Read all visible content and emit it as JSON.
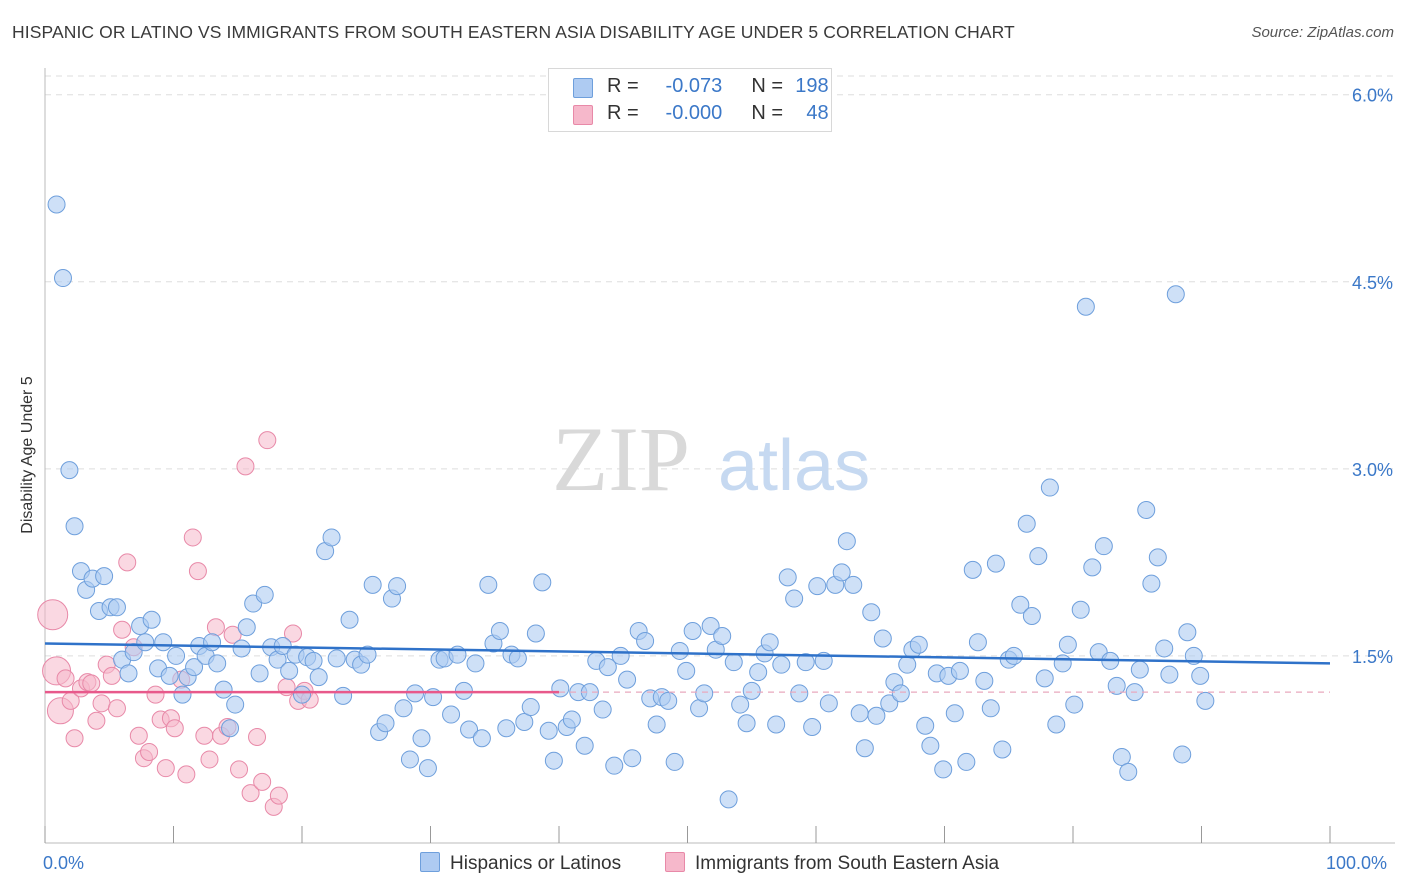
{
  "title": "HISPANIC OR LATINO VS IMMIGRANTS FROM SOUTH EASTERN ASIA DISABILITY AGE UNDER 5 CORRELATION CHART",
  "source": "Source: ZipAtlas.com",
  "watermark": {
    "zip": "ZIP",
    "atlas": "atlas"
  },
  "legend": {
    "r_label": "R =",
    "n_label": "N =",
    "rows": [
      {
        "r": "-0.073",
        "n": "198",
        "color": "#aecbf2"
      },
      {
        "r": "-0.000",
        "n": "48",
        "color": "#f6b8cb"
      }
    ]
  },
  "bottom_legend": [
    {
      "label": "Hispanics or Latinos",
      "color": "#aecbf2"
    },
    {
      "label": "Immigrants from South Eastern Asia",
      "color": "#f6b8cb"
    }
  ],
  "colors": {
    "blue_fill": "#aecbf2",
    "blue_stroke": "#6e9fdc",
    "blue_line": "#2f72c9",
    "pink_fill": "#f6b8cb",
    "pink_stroke": "#e889a8",
    "pink_line": "#e8598b",
    "axis_label": "#3b78c8",
    "grid": "#dddddd"
  },
  "chart_data": {
    "type": "scatter",
    "title": "HISPANIC OR LATINO VS IMMIGRANTS FROM SOUTH EASTERN ASIA DISABILITY AGE UNDER 5 CORRELATION CHART",
    "xlabel": "",
    "ylabel": "Disability Age Under 5",
    "xlim": [
      0,
      100
    ],
    "ylim": [
      0,
      6.15
    ],
    "x_tick_labels": [
      "0.0%",
      "100.0%"
    ],
    "y_ticks": [
      1.5,
      3.0,
      4.5,
      6.0
    ],
    "y_tick_labels": [
      "1.5%",
      "3.0%",
      "4.5%",
      "6.0%"
    ],
    "grid": "horizontal dashed",
    "legend_position": "top-center",
    "series": [
      {
        "name": "Hispanics or Latinos",
        "color": "#aecbf2",
        "trend": {
          "x": [
            0,
            100
          ],
          "y": [
            1.6,
            1.44
          ]
        },
        "points": [
          [
            0.9,
            5.12
          ],
          [
            1.4,
            4.53
          ],
          [
            1.9,
            2.99
          ],
          [
            2.3,
            2.54
          ],
          [
            2.8,
            2.18
          ],
          [
            3.2,
            2.03
          ],
          [
            3.7,
            2.12
          ],
          [
            4.2,
            1.86
          ],
          [
            4.6,
            2.14
          ],
          [
            5.1,
            1.89
          ],
          [
            5.6,
            1.89
          ],
          [
            6.0,
            1.47
          ],
          [
            6.5,
            1.36
          ],
          [
            6.9,
            1.53
          ],
          [
            7.4,
            1.74
          ],
          [
            7.8,
            1.61
          ],
          [
            8.3,
            1.79
          ],
          [
            8.8,
            1.4
          ],
          [
            9.2,
            1.61
          ],
          [
            9.7,
            1.34
          ],
          [
            10.2,
            1.5
          ],
          [
            10.7,
            1.19
          ],
          [
            11.1,
            1.33
          ],
          [
            11.6,
            1.41
          ],
          [
            12.0,
            1.58
          ],
          [
            12.5,
            1.5
          ],
          [
            13.0,
            1.61
          ],
          [
            13.4,
            1.44
          ],
          [
            13.9,
            1.23
          ],
          [
            14.4,
            0.92
          ],
          [
            14.8,
            1.11
          ],
          [
            15.3,
            1.56
          ],
          [
            15.7,
            1.73
          ],
          [
            16.2,
            1.92
          ],
          [
            16.7,
            1.36
          ],
          [
            17.1,
            1.99
          ],
          [
            17.6,
            1.57
          ],
          [
            18.1,
            1.47
          ],
          [
            18.5,
            1.58
          ],
          [
            19.0,
            1.38
          ],
          [
            19.5,
            1.51
          ],
          [
            20.0,
            1.19
          ],
          [
            20.4,
            1.49
          ],
          [
            20.9,
            1.46
          ],
          [
            21.3,
            1.33
          ],
          [
            21.8,
            2.34
          ],
          [
            22.3,
            2.45
          ],
          [
            22.7,
            1.48
          ],
          [
            23.2,
            1.18
          ],
          [
            23.7,
            1.79
          ],
          [
            24.1,
            1.47
          ],
          [
            24.6,
            1.43
          ],
          [
            25.1,
            1.51
          ],
          [
            25.5,
            2.07
          ],
          [
            26.0,
            0.89
          ],
          [
            26.5,
            0.96
          ],
          [
            27.0,
            1.96
          ],
          [
            27.4,
            2.06
          ],
          [
            27.9,
            1.08
          ],
          [
            28.4,
            0.67
          ],
          [
            28.8,
            1.2
          ],
          [
            29.3,
            0.84
          ],
          [
            29.8,
            0.6
          ],
          [
            30.2,
            1.17
          ],
          [
            30.7,
            1.47
          ],
          [
            31.1,
            1.48
          ],
          [
            31.6,
            1.03
          ],
          [
            32.1,
            1.51
          ],
          [
            32.6,
            1.22
          ],
          [
            33.0,
            0.91
          ],
          [
            33.5,
            1.44
          ],
          [
            34.0,
            0.84
          ],
          [
            34.5,
            2.07
          ],
          [
            34.9,
            1.6
          ],
          [
            35.4,
            1.7
          ],
          [
            35.9,
            0.92
          ],
          [
            36.3,
            1.51
          ],
          [
            36.8,
            1.48
          ],
          [
            37.3,
            0.97
          ],
          [
            37.8,
            1.09
          ],
          [
            38.2,
            1.68
          ],
          [
            38.7,
            2.09
          ],
          [
            39.2,
            0.9
          ],
          [
            39.6,
            0.66
          ],
          [
            40.1,
            1.24
          ],
          [
            40.6,
            0.93
          ],
          [
            41.0,
            0.99
          ],
          [
            41.5,
            1.21
          ],
          [
            42.0,
            0.78
          ],
          [
            42.4,
            1.21
          ],
          [
            42.9,
            1.46
          ],
          [
            43.4,
            1.07
          ],
          [
            43.8,
            1.41
          ],
          [
            44.3,
            0.62
          ],
          [
            44.8,
            1.5
          ],
          [
            45.3,
            1.31
          ],
          [
            45.7,
            0.68
          ],
          [
            46.2,
            1.7
          ],
          [
            46.7,
            1.62
          ],
          [
            47.1,
            1.16
          ],
          [
            47.6,
            0.95
          ],
          [
            48.0,
            1.17
          ],
          [
            48.5,
            1.14
          ],
          [
            49.0,
            0.65
          ],
          [
            49.4,
            1.54
          ],
          [
            49.9,
            1.38
          ],
          [
            50.4,
            1.7
          ],
          [
            50.9,
            1.08
          ],
          [
            51.3,
            1.2
          ],
          [
            51.8,
            1.74
          ],
          [
            52.2,
            1.55
          ],
          [
            52.7,
            1.66
          ],
          [
            53.2,
            0.35
          ],
          [
            53.6,
            1.45
          ],
          [
            54.1,
            1.11
          ],
          [
            54.6,
            0.96
          ],
          [
            55.0,
            1.22
          ],
          [
            55.5,
            1.37
          ],
          [
            56.0,
            1.52
          ],
          [
            56.4,
            1.61
          ],
          [
            56.9,
            0.95
          ],
          [
            57.3,
            1.43
          ],
          [
            57.8,
            2.13
          ],
          [
            58.3,
            1.96
          ],
          [
            58.7,
            1.2
          ],
          [
            59.2,
            1.45
          ],
          [
            59.7,
            0.93
          ],
          [
            60.1,
            2.06
          ],
          [
            60.6,
            1.46
          ],
          [
            61.0,
            1.12
          ],
          [
            61.5,
            2.07
          ],
          [
            62.0,
            2.17
          ],
          [
            62.4,
            2.42
          ],
          [
            62.9,
            2.07
          ],
          [
            63.4,
            1.04
          ],
          [
            63.8,
            0.76
          ],
          [
            64.3,
            1.85
          ],
          [
            64.7,
            1.02
          ],
          [
            65.2,
            1.64
          ],
          [
            65.7,
            1.12
          ],
          [
            66.1,
            1.29
          ],
          [
            66.6,
            1.2
          ],
          [
            67.1,
            1.43
          ],
          [
            67.5,
            1.55
          ],
          [
            68.0,
            1.59
          ],
          [
            68.5,
            0.94
          ],
          [
            68.9,
            0.78
          ],
          [
            69.4,
            1.36
          ],
          [
            69.9,
            0.59
          ],
          [
            70.3,
            1.34
          ],
          [
            70.8,
            1.04
          ],
          [
            71.2,
            1.38
          ],
          [
            71.7,
            0.65
          ],
          [
            72.2,
            2.19
          ],
          [
            72.6,
            1.61
          ],
          [
            73.1,
            1.3
          ],
          [
            73.6,
            1.08
          ],
          [
            74.0,
            2.24
          ],
          [
            74.5,
            0.75
          ],
          [
            75.0,
            1.47
          ],
          [
            75.4,
            1.5
          ],
          [
            75.9,
            1.91
          ],
          [
            76.4,
            2.56
          ],
          [
            76.8,
            1.82
          ],
          [
            77.3,
            2.3
          ],
          [
            77.8,
            1.32
          ],
          [
            78.2,
            2.85
          ],
          [
            78.7,
            0.95
          ],
          [
            79.2,
            1.44
          ],
          [
            79.6,
            1.59
          ],
          [
            80.1,
            1.11
          ],
          [
            80.6,
            1.87
          ],
          [
            81.0,
            4.3
          ],
          [
            81.5,
            2.21
          ],
          [
            82.0,
            1.53
          ],
          [
            82.4,
            2.38
          ],
          [
            82.9,
            1.46
          ],
          [
            83.4,
            1.26
          ],
          [
            83.8,
            0.69
          ],
          [
            84.3,
            0.57
          ],
          [
            84.8,
            1.21
          ],
          [
            85.2,
            1.39
          ],
          [
            85.7,
            2.67
          ],
          [
            86.1,
            2.08
          ],
          [
            86.6,
            2.29
          ],
          [
            87.1,
            1.56
          ],
          [
            87.5,
            1.35
          ],
          [
            88.0,
            4.4
          ],
          [
            88.5,
            0.71
          ],
          [
            88.9,
            1.69
          ],
          [
            89.4,
            1.5
          ],
          [
            89.9,
            1.34
          ],
          [
            90.3,
            1.14
          ]
        ]
      },
      {
        "name": "Immigrants from South Eastern Asia",
        "color": "#f6b8cb",
        "trend": {
          "x": [
            0,
            40
          ],
          "y": [
            1.21,
            1.21
          ]
        },
        "points": [
          [
            0.6,
            1.83
          ],
          [
            0.9,
            1.38
          ],
          [
            1.2,
            1.06
          ],
          [
            1.6,
            1.32
          ],
          [
            2.0,
            1.14
          ],
          [
            2.3,
            0.84
          ],
          [
            2.8,
            1.24
          ],
          [
            3.3,
            1.29
          ],
          [
            3.6,
            1.28
          ],
          [
            4.0,
            0.98
          ],
          [
            4.4,
            1.12
          ],
          [
            4.8,
            1.43
          ],
          [
            5.2,
            1.34
          ],
          [
            5.6,
            1.08
          ],
          [
            6.0,
            1.71
          ],
          [
            6.4,
            2.25
          ],
          [
            6.9,
            1.57
          ],
          [
            7.3,
            0.86
          ],
          [
            7.7,
            0.68
          ],
          [
            8.1,
            0.73
          ],
          [
            8.6,
            1.19
          ],
          [
            9.0,
            0.99
          ],
          [
            9.4,
            0.6
          ],
          [
            9.8,
            1.0
          ],
          [
            10.1,
            0.92
          ],
          [
            10.6,
            1.31
          ],
          [
            11.0,
            0.55
          ],
          [
            11.5,
            2.45
          ],
          [
            11.9,
            2.18
          ],
          [
            12.4,
            0.86
          ],
          [
            12.8,
            0.67
          ],
          [
            13.3,
            1.73
          ],
          [
            13.7,
            0.86
          ],
          [
            14.2,
            0.93
          ],
          [
            14.6,
            1.67
          ],
          [
            15.1,
            0.59
          ],
          [
            15.6,
            3.02
          ],
          [
            16.0,
            0.4
          ],
          [
            16.5,
            0.85
          ],
          [
            16.9,
            0.49
          ],
          [
            17.3,
            3.23
          ],
          [
            17.8,
            0.29
          ],
          [
            18.2,
            0.38
          ],
          [
            18.8,
            1.25
          ],
          [
            19.3,
            1.68
          ],
          [
            19.7,
            1.14
          ],
          [
            20.2,
            1.22
          ],
          [
            20.6,
            1.15
          ]
        ]
      }
    ]
  }
}
